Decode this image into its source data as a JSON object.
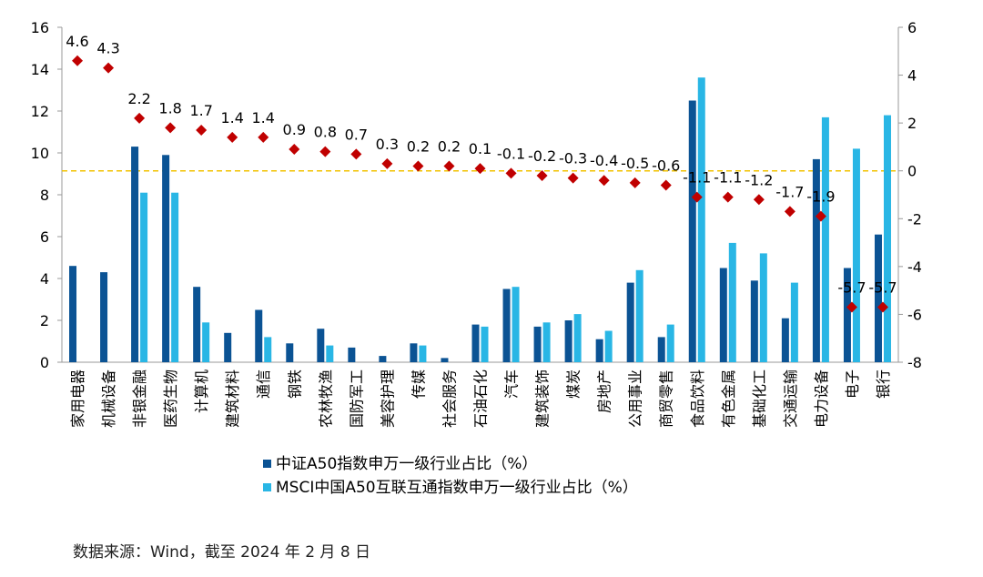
{
  "chart_data": {
    "type": "bar",
    "categories": [
      "家用电器",
      "机械设备",
      "非银金融",
      "医药生物",
      "计算机",
      "建筑材料",
      "通信",
      "钢铁",
      "农林牧渔",
      "国防军工",
      "美容护理",
      "传媒",
      "社会服务",
      "石油石化",
      "汽车",
      "建筑装饰",
      "煤炭",
      "房地产",
      "公用事业",
      "商贸零售",
      "食品饮料",
      "有色金属",
      "基础化工",
      "交通运输",
      "电力设备",
      "电子",
      "银行"
    ],
    "series": [
      {
        "name": "中证A50指数申万一级行业占比（%）",
        "color": "#0b5394",
        "axis": "left",
        "values": [
          4.6,
          4.3,
          10.3,
          9.9,
          3.6,
          1.4,
          2.5,
          0.9,
          1.6,
          0.7,
          0.3,
          0.9,
          0.2,
          1.8,
          3.5,
          1.7,
          2.0,
          1.1,
          3.8,
          1.2,
          12.5,
          4.5,
          3.9,
          2.1,
          9.7,
          4.5,
          6.1
        ]
      },
      {
        "name": "MSCI中国A50互联互通指数申万一级行业占比（%）",
        "color": "#29b6e5",
        "axis": "left",
        "values": [
          0,
          0,
          8.1,
          8.1,
          1.9,
          0,
          1.2,
          0,
          0.8,
          0,
          0,
          0.8,
          0,
          1.7,
          3.6,
          1.9,
          2.3,
          1.5,
          4.4,
          1.8,
          13.6,
          5.7,
          5.2,
          3.8,
          11.7,
          10.2,
          11.8
        ]
      },
      {
        "axis": "right",
        "marker": "diamond",
        "color": "#c00000",
        "values": [
          4.6,
          4.3,
          2.2,
          1.8,
          1.7,
          1.4,
          1.4,
          0.9,
          0.8,
          0.7,
          0.3,
          0.2,
          0.2,
          0.1,
          -0.1,
          -0.2,
          -0.3,
          -0.4,
          -0.5,
          -0.6,
          -1.1,
          -1.1,
          -1.2,
          -1.7,
          -1.9,
          -5.7,
          -5.7
        ],
        "labels": [
          "4.6",
          "4.3",
          "2.2",
          "1.8",
          "1.7",
          "1.4",
          "1.4",
          "0.9",
          "0.8",
          "0.7",
          "0.3",
          "0.2",
          "0.2",
          "0.1",
          "-0.1",
          "-0.2",
          "-0.3",
          "-0.4",
          "-0.5",
          "-0.6",
          "-1.1",
          "-1.1",
          "-1.2",
          "-1.7",
          "-1.9",
          "-5.7",
          "-5.7"
        ]
      }
    ],
    "ylim": [
      0,
      16
    ],
    "yticks": [
      "0",
      "2",
      "4",
      "6",
      "8",
      "10",
      "12",
      "14",
      "16"
    ],
    "y2lim": [
      -8,
      6
    ],
    "y2ticks": [
      "-8",
      "-6",
      "-4",
      "-2",
      "0",
      "2",
      "4",
      "6"
    ],
    "zero_line_color": "#f2c200",
    "legend_placement": "bottom-center",
    "grid": false
  },
  "source_note": "数据来源：Wind，截至 2024 年 2 月 8 日"
}
